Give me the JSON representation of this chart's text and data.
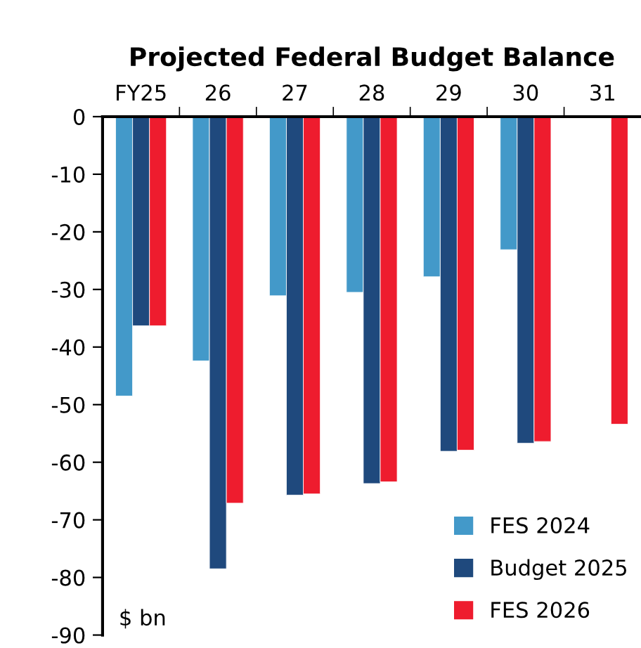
{
  "chart_data": {
    "type": "bar",
    "title": "Projected Federal Budget Balance",
    "categories": [
      "FY25",
      "26",
      "27",
      "28",
      "29",
      "30",
      "31"
    ],
    "series": [
      {
        "name": "FES 2024",
        "color": "#4399c9",
        "values": [
          -48.5,
          -42.4,
          -31.1,
          -30.5,
          -27.8,
          -23.1,
          null
        ]
      },
      {
        "name": "Budget 2025",
        "color": "#1f497d",
        "values": [
          -36.3,
          -78.5,
          -65.7,
          -63.7,
          -58.1,
          -56.7,
          null
        ]
      },
      {
        "name": "FES 2026",
        "color": "#ee1c2e",
        "values": [
          -36.3,
          -67.1,
          -65.5,
          -63.4,
          -57.9,
          -56.4,
          -53.4
        ]
      }
    ],
    "ylim": [
      -90,
      0
    ],
    "yticks": [
      0,
      -10,
      -20,
      -30,
      -40,
      -50,
      -60,
      -70,
      -80,
      -90
    ],
    "annotations": [
      "$ bn"
    ],
    "legend": "bottom right",
    "grid": false
  }
}
